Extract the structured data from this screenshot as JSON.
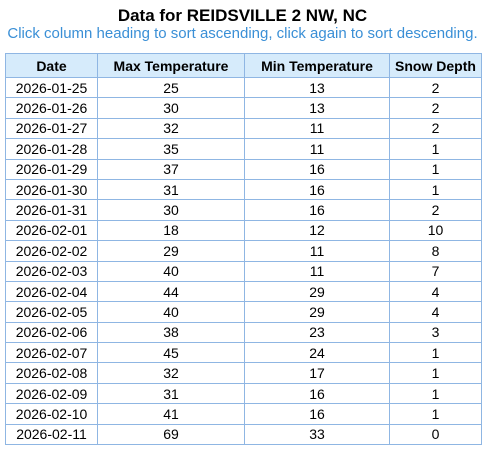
{
  "page": {
    "title": "Data for REIDSVILLE 2 NW, NC",
    "subtitle": "Click column heading to sort ascending, click again to sort descending."
  },
  "table": {
    "columns": [
      "Date",
      "Max Temperature",
      "Min Temperature",
      "Snow Depth"
    ],
    "rows": [
      [
        "2026-01-25",
        "25",
        "13",
        "2"
      ],
      [
        "2026-01-26",
        "30",
        "13",
        "2"
      ],
      [
        "2026-01-27",
        "32",
        "11",
        "2"
      ],
      [
        "2026-01-28",
        "35",
        "11",
        "1"
      ],
      [
        "2026-01-29",
        "37",
        "16",
        "1"
      ],
      [
        "2026-01-30",
        "31",
        "16",
        "1"
      ],
      [
        "2026-01-31",
        "30",
        "16",
        "2"
      ],
      [
        "2026-02-01",
        "18",
        "12",
        "10"
      ],
      [
        "2026-02-02",
        "29",
        "11",
        "8"
      ],
      [
        "2026-02-03",
        "40",
        "11",
        "7"
      ],
      [
        "2026-02-04",
        "44",
        "29",
        "4"
      ],
      [
        "2026-02-05",
        "40",
        "29",
        "4"
      ],
      [
        "2026-02-06",
        "38",
        "23",
        "3"
      ],
      [
        "2026-02-07",
        "45",
        "24",
        "1"
      ],
      [
        "2026-02-08",
        "32",
        "17",
        "1"
      ],
      [
        "2026-02-09",
        "31",
        "16",
        "1"
      ],
      [
        "2026-02-10",
        "41",
        "16",
        "1"
      ],
      [
        "2026-02-11",
        "69",
        "33",
        "0"
      ]
    ]
  },
  "colors": {
    "subtitle": "#3a8fd6",
    "header_bg": "#d6ebfb",
    "border": "#8fb6e3"
  }
}
